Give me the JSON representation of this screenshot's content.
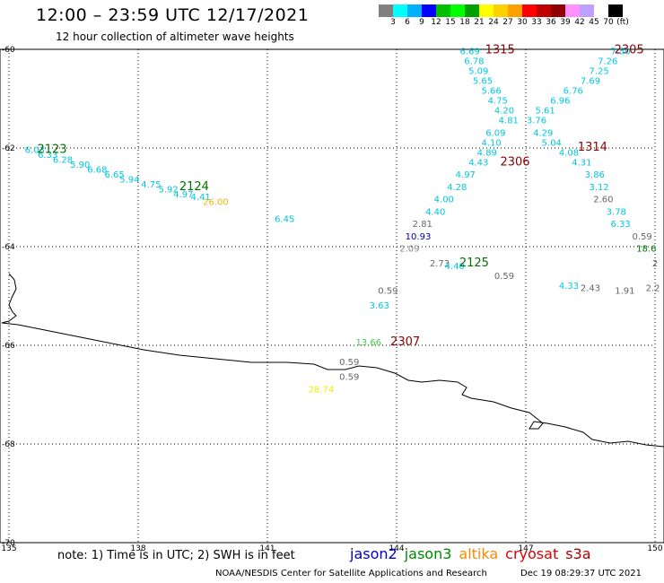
{
  "header": {
    "title": "12:00 – 23:59 UTC 12/17/2021",
    "subtitle": "12 hour collection of altimeter wave heights"
  },
  "color_scale": {
    "colors": [
      "#808080",
      "#00ffff",
      "#00b0ff",
      "#0000ff",
      "#00c000",
      "#00ff00",
      "#00a000",
      "#ffff00",
      "#ffd000",
      "#ffa000",
      "#ff0000",
      "#c00000",
      "#900000",
      "#ff90ff",
      "#c0a0ff",
      "#ffffff",
      "#000000"
    ],
    "labels": [
      "3",
      "6",
      "9",
      "12",
      "15",
      "18",
      "21",
      "24",
      "27",
      "30",
      "33",
      "36",
      "39",
      "42",
      "45",
      "70",
      "(ft)"
    ]
  },
  "map": {
    "lon_ticks": [
      "135",
      "138",
      "141",
      "144",
      "147",
      "150"
    ],
    "lat_ticks": [
      "-60",
      "-62",
      "-64",
      "-66",
      "-68",
      "-70"
    ]
  },
  "observations": [
    {
      "t": "1315",
      "c": "#8b0000",
      "lon": 146.4,
      "lat": -60.08,
      "s": 13
    },
    {
      "t": "2305",
      "c": "#8b0000",
      "lon": 149.4,
      "lat": -60.08,
      "s": 13
    },
    {
      "t": "6.69",
      "c": "#00c8e0",
      "lon": 145.7,
      "lat": -60.1
    },
    {
      "t": "6.78",
      "c": "#00c8e0",
      "lon": 145.8,
      "lat": -60.3
    },
    {
      "t": "5.09",
      "c": "#00c8e0",
      "lon": 145.9,
      "lat": -60.5
    },
    {
      "t": "5.65",
      "c": "#00c8e0",
      "lon": 146.0,
      "lat": -60.7
    },
    {
      "t": "5.66",
      "c": "#00c8e0",
      "lon": 146.2,
      "lat": -60.9
    },
    {
      "t": "4.75",
      "c": "#00c8e0",
      "lon": 146.35,
      "lat": -61.1
    },
    {
      "t": "4.20",
      "c": "#00c8e0",
      "lon": 146.5,
      "lat": -61.3
    },
    {
      "t": "4.81",
      "c": "#00c8e0",
      "lon": 146.6,
      "lat": -61.5
    },
    {
      "t": "6.09",
      "c": "#00c8e0",
      "lon": 146.3,
      "lat": -61.75
    },
    {
      "t": "4.10",
      "c": "#00c8e0",
      "lon": 146.2,
      "lat": -61.95
    },
    {
      "t": "4.89",
      "c": "#00c8e0",
      "lon": 146.1,
      "lat": -62.15
    },
    {
      "t": "4.43",
      "c": "#00c8e0",
      "lon": 145.9,
      "lat": -62.35
    },
    {
      "t": "4.97",
      "c": "#00c8e0",
      "lon": 145.6,
      "lat": -62.6
    },
    {
      "t": "4.28",
      "c": "#00c8e0",
      "lon": 145.4,
      "lat": -62.85
    },
    {
      "t": "4.00",
      "c": "#00c8e0",
      "lon": 145.1,
      "lat": -63.1
    },
    {
      "t": "4.40",
      "c": "#00c8e0",
      "lon": 144.9,
      "lat": -63.35
    },
    {
      "t": "2.81",
      "c": "#666666",
      "lon": 144.6,
      "lat": -63.6
    },
    {
      "t": "10.93",
      "c": "#0000a0",
      "lon": 144.5,
      "lat": -63.85
    },
    {
      "t": "2.09",
      "c": "#888888",
      "lon": 144.3,
      "lat": -64.1
    },
    {
      "t": "7.50",
      "c": "#00c8e0",
      "lon": 149.2,
      "lat": -60.1
    },
    {
      "t": "7.26",
      "c": "#00c8e0",
      "lon": 148.9,
      "lat": -60.3
    },
    {
      "t": "7.25",
      "c": "#00c8e0",
      "lon": 148.7,
      "lat": -60.5
    },
    {
      "t": "7.69",
      "c": "#00c8e0",
      "lon": 148.5,
      "lat": -60.7
    },
    {
      "t": "6.76",
      "c": "#00c8e0",
      "lon": 148.1,
      "lat": -60.9
    },
    {
      "t": "6.96",
      "c": "#00c8e0",
      "lon": 147.8,
      "lat": -61.1
    },
    {
      "t": "5.61",
      "c": "#00c8e0",
      "lon": 147.45,
      "lat": -61.3
    },
    {
      "t": "3.76",
      "c": "#00c8e0",
      "lon": 147.25,
      "lat": -61.5
    },
    {
      "t": "4.29",
      "c": "#00c8e0",
      "lon": 147.4,
      "lat": -61.75
    },
    {
      "t": "5.04",
      "c": "#00c8e0",
      "lon": 147.6,
      "lat": -61.95
    },
    {
      "t": "4.08",
      "c": "#00c8e0",
      "lon": 148.0,
      "lat": -62.15
    },
    {
      "t": "4.31",
      "c": "#00c8e0",
      "lon": 148.3,
      "lat": -62.35
    },
    {
      "t": "3.86",
      "c": "#00c8e0",
      "lon": 148.6,
      "lat": -62.6
    },
    {
      "t": "3.12",
      "c": "#00c8e0",
      "lon": 148.7,
      "lat": -62.85
    },
    {
      "t": "2.60",
      "c": "#666666",
      "lon": 148.8,
      "lat": -63.1
    },
    {
      "t": "3.78",
      "c": "#00c8e0",
      "lon": 149.1,
      "lat": -63.35
    },
    {
      "t": "6.33",
      "c": "#00c8e0",
      "lon": 149.2,
      "lat": -63.6
    },
    {
      "t": "0.59",
      "c": "#666666",
      "lon": 149.7,
      "lat": -63.85
    },
    {
      "t": "18.6",
      "c": "#007000",
      "lon": 149.8,
      "lat": -64.1
    },
    {
      "t": "2",
      "c": "#666666",
      "lon": 150.0,
      "lat": -64.4
    },
    {
      "t": "2.2",
      "c": "#666666",
      "lon": 149.95,
      "lat": -64.9
    },
    {
      "t": "1314",
      "c": "#8b0000",
      "lon": 148.55,
      "lat": -62.05,
      "s": 13
    },
    {
      "t": "2306",
      "c": "#8b0000",
      "lon": 146.75,
      "lat": -62.35,
      "s": 13
    },
    {
      "t": "6.03",
      "c": "#00c8e0",
      "lon": 135.6,
      "lat": -62.1
    },
    {
      "t": "6.33",
      "c": "#00c8e0",
      "lon": 135.9,
      "lat": -62.2
    },
    {
      "t": "6.28",
      "c": "#00c8e0",
      "lon": 136.25,
      "lat": -62.3
    },
    {
      "t": "5.90",
      "c": "#00c8e0",
      "lon": 136.65,
      "lat": -62.4
    },
    {
      "t": "6.68",
      "c": "#00c8e0",
      "lon": 137.05,
      "lat": -62.5
    },
    {
      "t": "6.65",
      "c": "#00c8e0",
      "lon": 137.45,
      "lat": -62.6
    },
    {
      "t": "5.94",
      "c": "#00c8e0",
      "lon": 137.8,
      "lat": -62.7
    },
    {
      "t": "4.75",
      "c": "#00c8e0",
      "lon": 138.3,
      "lat": -62.8
    },
    {
      "t": "5.92",
      "c": "#00c8e0",
      "lon": 138.7,
      "lat": -62.9
    },
    {
      "t": "4.97",
      "c": "#00c8e0",
      "lon": 139.05,
      "lat": -63.0
    },
    {
      "t": "4.41",
      "c": "#00c8e0",
      "lon": 139.45,
      "lat": -63.05
    },
    {
      "t": "26.00",
      "c": "#ffb000",
      "lon": 139.8,
      "lat": -63.15
    },
    {
      "t": "2123",
      "c": "#007000",
      "lon": 136.0,
      "lat": -62.1,
      "s": 13
    },
    {
      "t": "2124",
      "c": "#007000",
      "lon": 139.3,
      "lat": -62.85,
      "s": 13
    },
    {
      "t": "6.45",
      "c": "#00c8e0",
      "lon": 141.4,
      "lat": -63.5
    },
    {
      "t": "2.73",
      "c": "#666666",
      "lon": 145.0,
      "lat": -64.4
    },
    {
      "t": "4.40",
      "c": "#00c8e0",
      "lon": 145.35,
      "lat": -64.45
    },
    {
      "t": "2125",
      "c": "#007000",
      "lon": 145.8,
      "lat": -64.4,
      "s": 13
    },
    {
      "t": "0.59",
      "c": "#666666",
      "lon": 146.5,
      "lat": -64.65
    },
    {
      "t": "4.33",
      "c": "#00c8e0",
      "lon": 148.0,
      "lat": -64.85
    },
    {
      "t": "2.43",
      "c": "#666666",
      "lon": 148.5,
      "lat": -64.9
    },
    {
      "t": "1.91",
      "c": "#666666",
      "lon": 149.3,
      "lat": -64.95
    },
    {
      "t": "0.59",
      "c": "#666666",
      "lon": 143.8,
      "lat": -64.95
    },
    {
      "t": "3.63",
      "c": "#00c8e0",
      "lon": 143.6,
      "lat": -65.25
    },
    {
      "t": "13.66",
      "c": "#44cc44",
      "lon": 143.35,
      "lat": -66.0
    },
    {
      "t": "2307",
      "c": "#8b0000",
      "lon": 144.2,
      "lat": -66.0,
      "s": 13
    },
    {
      "t": "0.59",
      "c": "#666666",
      "lon": 142.9,
      "lat": -66.4
    },
    {
      "t": "0.59",
      "c": "#666666",
      "lon": 142.9,
      "lat": -66.7
    },
    {
      "t": "28.74",
      "c": "#eeee00",
      "lon": 142.25,
      "lat": -66.95
    }
  ],
  "footer": {
    "note": "note: 1) Time is in UTC; 2) SWH is in feet",
    "satellites": [
      {
        "name": "jason2",
        "color": "#0000cc"
      },
      {
        "name": "jason3",
        "color": "#008800"
      },
      {
        "name": "altika",
        "color": "#ff8800"
      },
      {
        "name": "cryosat",
        "color": "#dd0000"
      },
      {
        "name": "s3a",
        "color": "#aa0000"
      }
    ],
    "credit": "NOAA/NESDIS Center for Satellite Applications and Research",
    "timestamp": "Dec 19 08:29:37 UTC 2021"
  }
}
